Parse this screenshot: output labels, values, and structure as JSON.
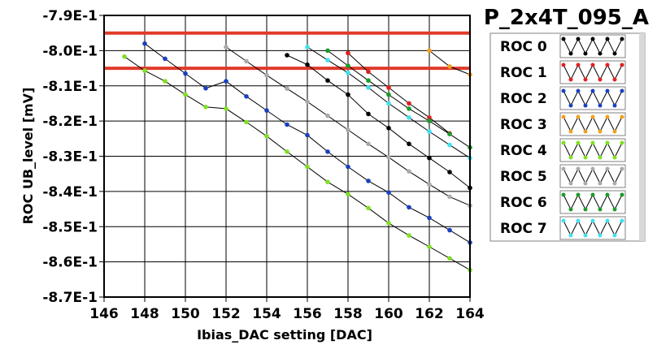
{
  "chart_data": {
    "type": "line",
    "title": "P_2x4T_095_A",
    "xlabel": "Ibias_DAC setting [DAC]",
    "ylabel": "ROC UB_level [mV]",
    "xlim": [
      146,
      164
    ],
    "ylim": [
      -0.87,
      -0.79
    ],
    "x_ticks": [
      146,
      148,
      150,
      152,
      154,
      156,
      158,
      160,
      162,
      164
    ],
    "x_tick_labels": [
      "146",
      "148",
      "150",
      "152",
      "154",
      "156",
      "158",
      "160",
      "162",
      "164"
    ],
    "y_ticks": [
      -0.79,
      -0.8,
      -0.81,
      -0.82,
      -0.83,
      -0.84,
      -0.85,
      -0.86,
      -0.87
    ],
    "y_tick_labels": [
      "-7.9E-1",
      "-8.0E-1",
      "-8.1E-1",
      "-8.2E-1",
      "-8.3E-1",
      "-8.4E-1",
      "-8.5E-1",
      "-8.6E-1",
      "-8.7E-1"
    ],
    "grid": true,
    "legend_position": "right",
    "reference_lines": [
      {
        "y": -0.795,
        "color": "#e03a2a"
      },
      {
        "y": -0.805,
        "color": "#e03a2a"
      }
    ],
    "series": [
      {
        "name": "ROC 0",
        "color": "#000000",
        "segments": [
          [
            [
              155,
              -0.8013
            ],
            [
              156,
              -0.804
            ],
            [
              157,
              -0.8085
            ],
            [
              158,
              -0.8125
            ],
            [
              159,
              -0.818
            ],
            [
              160,
              -0.822
            ],
            [
              161,
              -0.8265
            ],
            [
              162,
              -0.8305
            ],
            [
              163,
              -0.8345
            ],
            [
              164,
              -0.839
            ]
          ]
        ]
      },
      {
        "name": "ROC 1",
        "color": "#e02020",
        "segments": [
          [
            [
              158,
              -0.8007
            ],
            [
              159,
              -0.806
            ],
            [
              160,
              -0.8105
            ],
            [
              161,
              -0.815
            ],
            [
              162,
              -0.819
            ],
            [
              163,
              -0.8235
            ]
          ]
        ]
      },
      {
        "name": "ROC 2",
        "color": "#1a3fbf",
        "segments": [
          [
            [
              148,
              -0.798
            ],
            [
              149,
              -0.8023
            ],
            [
              150,
              -0.8065
            ],
            [
              151,
              -0.8107
            ],
            [
              152,
              -0.8087
            ],
            [
              153,
              -0.813
            ],
            [
              154,
              -0.817
            ],
            [
              155,
              -0.821
            ],
            [
              156,
              -0.824
            ],
            [
              157,
              -0.8287
            ],
            [
              158,
              -0.833
            ],
            [
              159,
              -0.837
            ],
            [
              160,
              -0.8403
            ],
            [
              161,
              -0.8445
            ],
            [
              162,
              -0.8475
            ],
            [
              163,
              -0.851
            ],
            [
              164,
              -0.8545
            ]
          ]
        ]
      },
      {
        "name": "ROC 3",
        "color": "#f0a020",
        "segments": [
          [
            [
              162,
              -0.8
            ],
            [
              163,
              -0.8045
            ],
            [
              164,
              -0.8068
            ]
          ]
        ]
      },
      {
        "name": "ROC 4",
        "color": "#7ee020",
        "segments": [
          [
            [
              147,
              -0.8017
            ],
            [
              148,
              -0.8057
            ],
            [
              149,
              -0.8087
            ],
            [
              150,
              -0.8125
            ],
            [
              151,
              -0.816
            ],
            [
              152,
              -0.8165
            ],
            [
              153,
              -0.8203
            ],
            [
              154,
              -0.8243
            ],
            [
              155,
              -0.8287
            ],
            [
              156,
              -0.833
            ],
            [
              157,
              -0.8373
            ],
            [
              158,
              -0.8408
            ],
            [
              159,
              -0.8447
            ],
            [
              160,
              -0.849
            ],
            [
              161,
              -0.8525
            ],
            [
              162,
              -0.8557
            ],
            [
              163,
              -0.859
            ],
            [
              164,
              -0.8623
            ]
          ]
        ]
      },
      {
        "name": "ROC 5",
        "color": "#aaaaaa",
        "segments": [
          [
            [
              152,
              -0.799
            ],
            [
              153,
              -0.803
            ],
            [
              154,
              -0.807
            ],
            [
              155,
              -0.8108
            ],
            [
              156,
              -0.8145
            ],
            [
              157,
              -0.8185
            ],
            [
              158,
              -0.8225
            ],
            [
              159,
              -0.8265
            ],
            [
              160,
              -0.8303
            ],
            [
              161,
              -0.8343
            ],
            [
              162,
              -0.838
            ],
            [
              163,
              -0.8415
            ],
            [
              164,
              -0.844
            ]
          ]
        ]
      },
      {
        "name": "ROC 6",
        "color": "#1a9a2a",
        "segments": [
          [
            [
              157,
              -0.8
            ],
            [
              158,
              -0.8043
            ],
            [
              159,
              -0.8085
            ],
            [
              160,
              -0.8125
            ],
            [
              161,
              -0.8165
            ],
            [
              162,
              -0.82
            ],
            [
              163,
              -0.8237
            ],
            [
              164,
              -0.8275
            ]
          ]
        ]
      },
      {
        "name": "ROC 7",
        "color": "#40e0f0",
        "segments": [
          [
            [
              156,
              -0.799
            ],
            [
              157,
              -0.8027
            ],
            [
              158,
              -0.8063
            ],
            [
              159,
              -0.8105
            ],
            [
              160,
              -0.815
            ],
            [
              161,
              -0.819
            ],
            [
              162,
              -0.823
            ],
            [
              163,
              -0.8268
            ],
            [
              164,
              -0.8305
            ]
          ]
        ]
      }
    ]
  }
}
